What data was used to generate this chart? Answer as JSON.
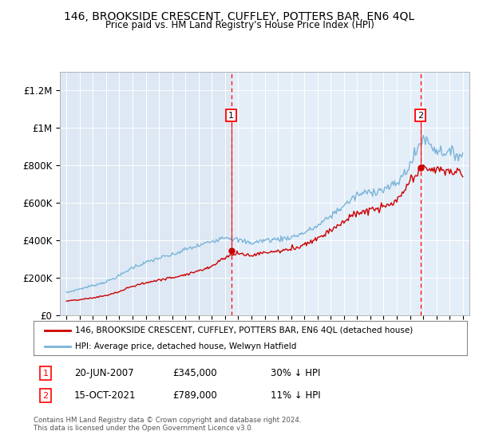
{
  "title": "146, BROOKSIDE CRESCENT, CUFFLEY, POTTERS BAR, EN6 4QL",
  "subtitle": "Price paid vs. HM Land Registry's House Price Index (HPI)",
  "background_color": "#ffffff",
  "plot_bg_color": "#dde8f4",
  "plot_bg_right_color": "#e8f0f8",
  "ylim": [
    0,
    1300000
  ],
  "yticks": [
    0,
    200000,
    400000,
    600000,
    800000,
    1000000,
    1200000
  ],
  "ytick_labels": [
    "£0",
    "£200K",
    "£400K",
    "£600K",
    "£800K",
    "£1M",
    "£1.2M"
  ],
  "hpi_color": "#7ab4d8",
  "price_color": "#cc0000",
  "t1_x": 2007.47,
  "t1_price": 345000,
  "t2_x": 2021.79,
  "t2_price": 789000,
  "legend_property": "146, BROOKSIDE CRESCENT, CUFFLEY, POTTERS BAR, EN6 4QL (detached house)",
  "legend_hpi": "HPI: Average price, detached house, Welwyn Hatfield",
  "note1_label": "1",
  "note1_date": "20-JUN-2007",
  "note1_price": "£345,000",
  "note1_hpi": "30% ↓ HPI",
  "note2_label": "2",
  "note2_date": "15-OCT-2021",
  "note2_price": "£789,000",
  "note2_hpi": "11% ↓ HPI",
  "footer": "Contains HM Land Registry data © Crown copyright and database right 2024.\nThis data is licensed under the Open Government Licence v3.0.",
  "xmin": 1995.0,
  "xmax": 2025.5
}
